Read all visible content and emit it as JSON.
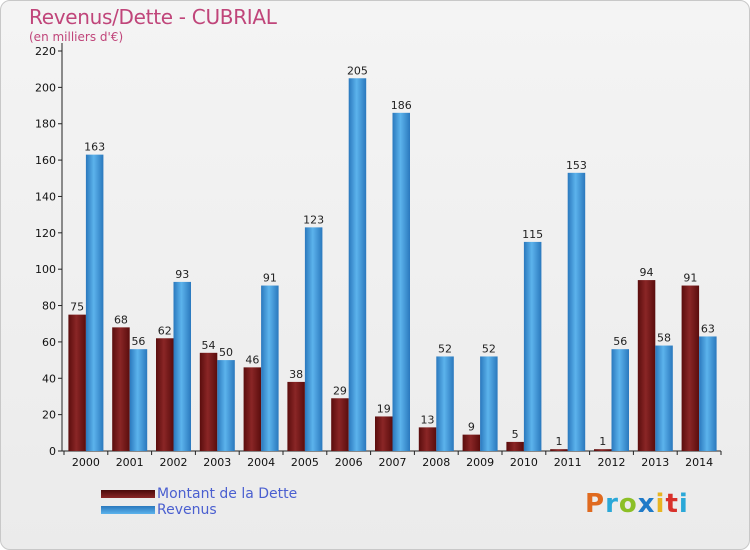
{
  "title": "Revenus/Dette - CUBRIAL",
  "subtitle": "(en milliers d'€)",
  "logo": "Proxiti",
  "colors": {
    "dette": "#7a1c1c",
    "revenus": "#3d95d8",
    "title": "#c0457a",
    "legend_text": "#4a5fd0"
  },
  "chart_data": {
    "type": "bar",
    "categories": [
      "2000",
      "2001",
      "2002",
      "2003",
      "2004",
      "2005",
      "2006",
      "2007",
      "2008",
      "2009",
      "2010",
      "2011",
      "2012",
      "2013",
      "2014"
    ],
    "series": [
      {
        "name": "Montant de la Dette",
        "values": [
          75,
          68,
          62,
          54,
          46,
          38,
          29,
          19,
          13,
          9,
          5,
          1,
          1,
          94,
          91
        ]
      },
      {
        "name": "Revenus",
        "values": [
          163,
          56,
          93,
          50,
          91,
          123,
          205,
          186,
          52,
          52,
          115,
          153,
          56,
          58,
          63
        ]
      }
    ],
    "ylim": [
      0,
      220
    ],
    "yticks": [
      0,
      20,
      40,
      60,
      80,
      100,
      120,
      140,
      160,
      180,
      200,
      220
    ],
    "grid": false,
    "legend": "bottom-left"
  }
}
